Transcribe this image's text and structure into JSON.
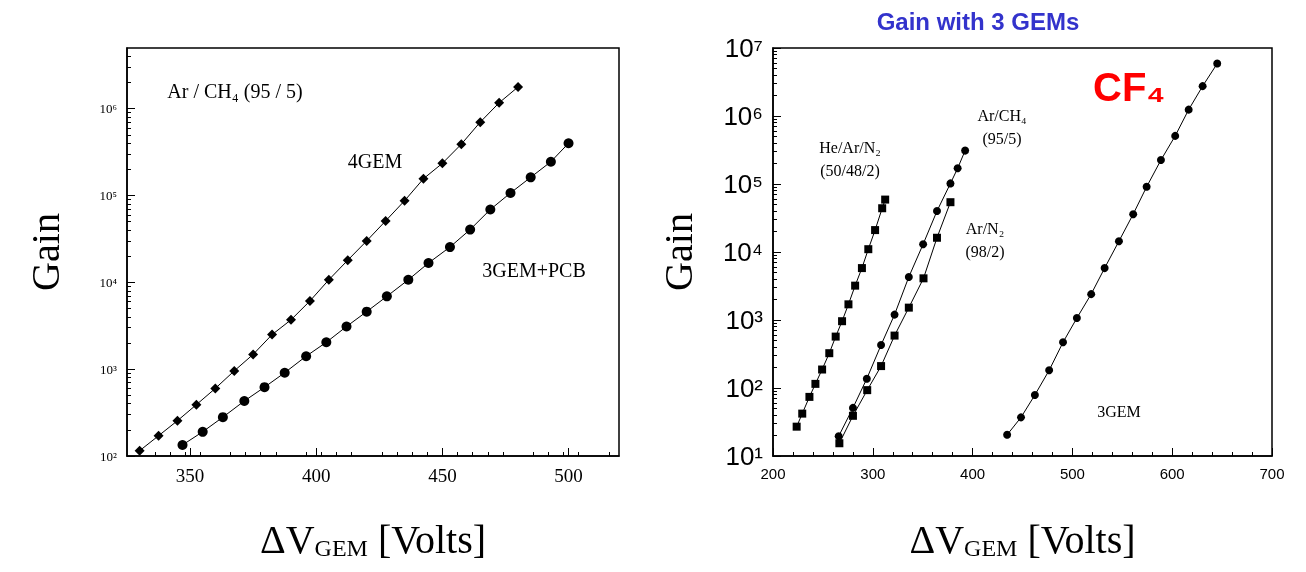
{
  "chart_data": [
    {
      "type": "line",
      "xlabel": "ΔV$_{GEM}$ [Volts]",
      "ylabel": "Gain",
      "log": true,
      "xlim": [
        325,
        520
      ],
      "xticks": [
        350,
        400,
        450,
        500
      ],
      "ylim": [
        100,
        5000000
      ],
      "yticks": [
        {
          "value": 100,
          "label": "10²"
        },
        {
          "value": 1000,
          "label": "10³"
        },
        {
          "value": 10000,
          "label": "10⁴"
        },
        {
          "value": 100000,
          "label": "10⁵"
        },
        {
          "value": 1000000,
          "label": "10⁶"
        }
      ],
      "series": [
        {
          "color": "#000000",
          "marker": "diamond",
          "x": [
            330,
            337.5,
            345,
            352.5,
            360,
            367.5,
            375,
            382.5,
            390,
            397.5,
            405,
            412.5,
            420,
            427.5,
            435,
            442.5,
            450,
            457.5,
            465,
            472.5,
            480
          ],
          "values": [
            115,
            171,
            255,
            390,
            600,
            955,
            1480,
            2500,
            3700,
            6100,
            10700,
            18000,
            30000,
            51000,
            87000,
            156000,
            235000,
            390000,
            700000,
            1170000,
            1780000
          ]
        },
        {
          "color": "#000000",
          "marker": "circle",
          "x": [
            347,
            355,
            363,
            371.5,
            379.5,
            387.5,
            396,
            404,
            412,
            420,
            428,
            436.5,
            444.5,
            453,
            461,
            469,
            477,
            485,
            493,
            500
          ],
          "values": [
            134,
            190,
            280,
            430,
            620,
            910,
            1410,
            2040,
            3100,
            4600,
            6900,
            10700,
            16700,
            25500,
            40500,
            69000,
            107000,
            162000,
            245000,
            400000
          ]
        }
      ],
      "annotations": [
        "Ar / CH₄ (95 / 5)",
        "4GEM",
        "3GEM+PCB"
      ]
    },
    {
      "type": "line",
      "title": "Gain with 3 GEMs",
      "subtitle": "CF₄",
      "xlabel": "ΔV$_{GEM}$ [Volts]",
      "ylabel": "Gain",
      "log": true,
      "xlim": [
        200,
        700
      ],
      "xticks": [
        200,
        300,
        400,
        500,
        600,
        700
      ],
      "ylim": [
        10,
        10000000
      ],
      "yticks": [
        {
          "value": 10,
          "label": "10¹"
        },
        {
          "value": 100,
          "label": "10²"
        },
        {
          "value": 1000,
          "label": "10³"
        },
        {
          "value": 10000,
          "label": "10⁴"
        },
        {
          "value": 100000,
          "label": "10⁵"
        },
        {
          "value": 1000000,
          "label": "10⁶"
        },
        {
          "value": 10000000,
          "label": "10⁷"
        }
      ],
      "series": [
        {
          "color": "#000000",
          "marker": "square",
          "x": [
            223.7,
            229.3,
            236.5,
            242.5,
            249.2,
            256.4,
            262.8,
            269.2,
            275.6,
            282.3,
            289.1,
            295.5,
            302.3,
            309.4,
            312.4
          ],
          "values": [
            27,
            42,
            74,
            115,
            187,
            325,
            570,
            960,
            1700,
            3200,
            5800,
            11000,
            21000,
            44000,
            59000
          ]
        },
        {
          "color": "#000000",
          "marker": "circle",
          "x": [
            265.8,
            280.1,
            294,
            308.3,
            321.8,
            336.1,
            350.4,
            364.3,
            377.8,
            385,
            392.5
          ],
          "values": [
            19.5,
            51,
            137,
            430,
            1200,
            4300,
            13000,
            40000,
            102000,
            170000,
            310000
          ]
        },
        {
          "color": "#000000",
          "marker": "square",
          "x": [
            266.5,
            280.1,
            294.4,
            308.3,
            321.8,
            336.1,
            350.8,
            364.3,
            377.8
          ],
          "values": [
            15.4,
            39,
            93,
            210,
            590,
            1520,
            4100,
            16200,
            54000
          ]
        },
        {
          "color": "#000000",
          "marker": "circle",
          "x": [
            434.6,
            448.5,
            462.4,
            476.7,
            490.6,
            504.5,
            518.8,
            532.3,
            546.6,
            560.9,
            574.4,
            588.7,
            603,
            616.5,
            630.5,
            645.1
          ],
          "values": [
            20.5,
            37,
            79,
            182,
            470,
            1070,
            2400,
            5800,
            14400,
            36000,
            91000,
            225000,
            510000,
            1240000,
            2750000,
            5900000
          ]
        }
      ],
      "annotations": [
        "He/Ar/N₂\n(50/48/2)",
        "Ar/CH₄\n(95/5)",
        "Ar/N₂\n(98/2)",
        "3GEM"
      ]
    }
  ]
}
